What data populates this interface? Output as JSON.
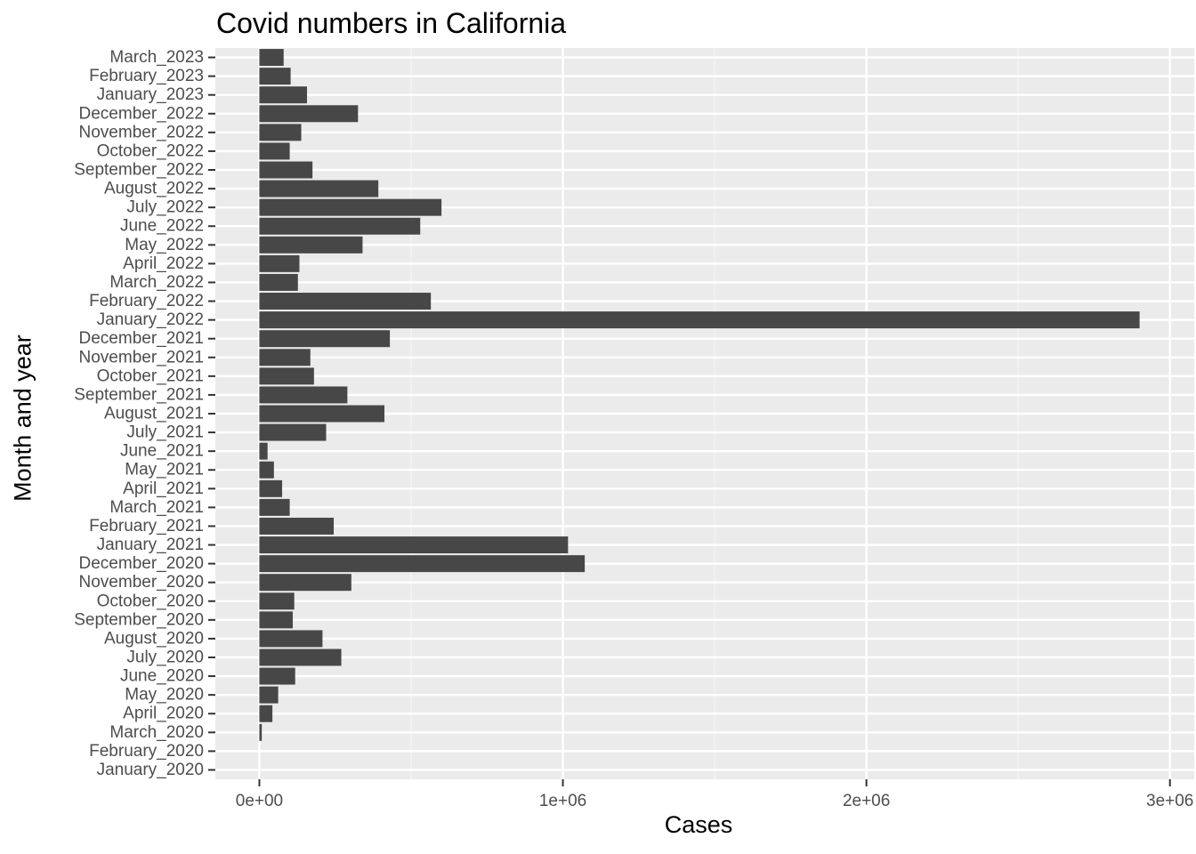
{
  "chart_data": {
    "type": "bar",
    "orientation": "horizontal",
    "title": "Covid numbers in California",
    "xlabel": "Cases",
    "ylabel": "Month and year",
    "xlim": [
      -145000,
      3080000
    ],
    "x_ticks": [
      0,
      1000000,
      2000000,
      3000000
    ],
    "x_tick_labels": [
      "0e+00",
      "1e+06",
      "2e+06",
      "3e+06"
    ],
    "grid": true,
    "legend": "none",
    "colors": {
      "bar": "#474747",
      "panel": "#ebebeb",
      "grid_major": "#ffffff",
      "grid_minor": "#f5f5f5",
      "tick_text": "#4d4d4d"
    },
    "categories": [
      "January_2020",
      "February_2020",
      "March_2020",
      "April_2020",
      "May_2020",
      "June_2020",
      "July_2020",
      "August_2020",
      "September_2020",
      "October_2020",
      "November_2020",
      "December_2020",
      "January_2021",
      "February_2021",
      "March_2021",
      "April_2021",
      "May_2021",
      "June_2021",
      "July_2021",
      "August_2021",
      "September_2021",
      "October_2021",
      "November_2021",
      "December_2021",
      "January_2022",
      "February_2022",
      "March_2022",
      "April_2022",
      "May_2022",
      "June_2022",
      "July_2022",
      "August_2022",
      "September_2022",
      "October_2022",
      "November_2022",
      "December_2022",
      "January_2023",
      "February_2023",
      "March_2023"
    ],
    "values": [
      0,
      0,
      8000,
      43000,
      62000,
      118000,
      270000,
      208000,
      110000,
      115000,
      303000,
      1072000,
      1017000,
      245000,
      100000,
      75000,
      48000,
      27000,
      220000,
      412000,
      290000,
      180000,
      168000,
      430000,
      2900000,
      565000,
      127000,
      132000,
      340000,
      530000,
      600000,
      392000,
      175000,
      100000,
      138000,
      325000,
      157000,
      103000,
      80000
    ]
  }
}
